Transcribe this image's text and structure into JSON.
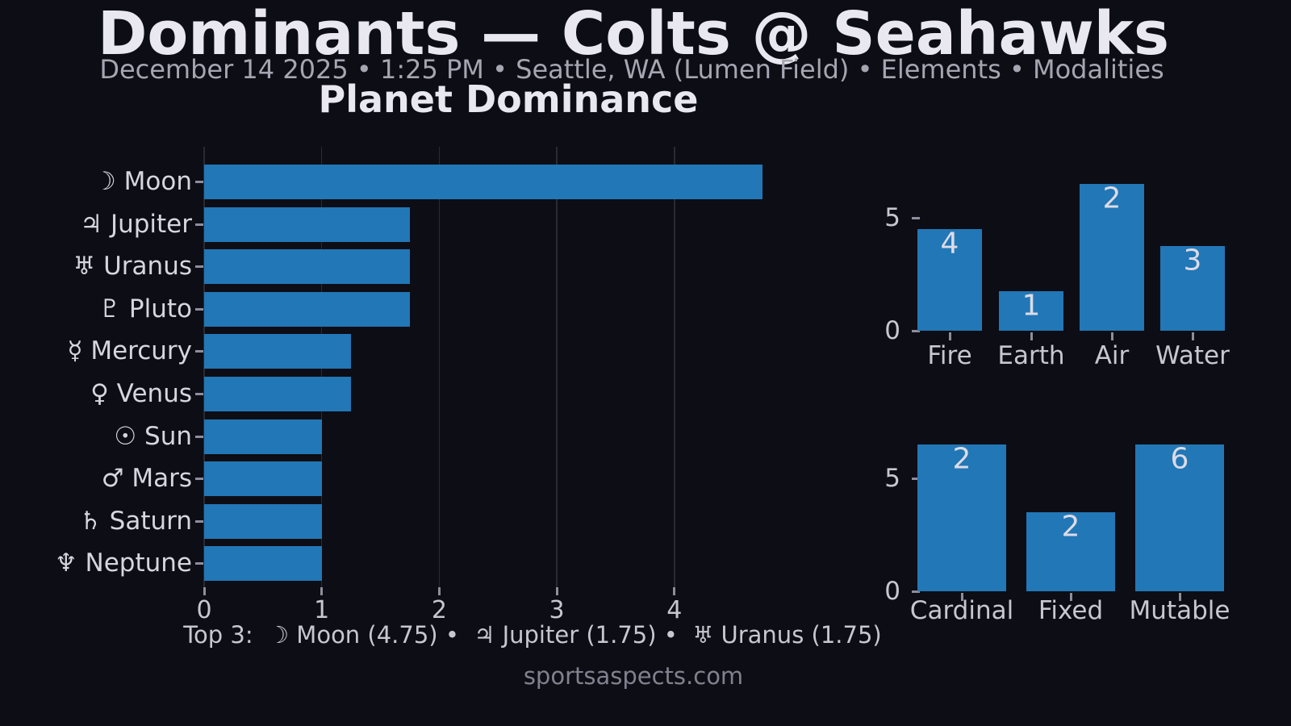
{
  "header": {
    "title": "Dominants — Colts @ Seahawks",
    "subtitle": "December 14 2025 • 1:25 PM • Seattle, WA (Lumen Field) • Elements • Modalities"
  },
  "footer": {
    "top3": "Top 3:  ☽ Moon (4.75) •  ♃ Jupiter (1.75) •  ♅ Uranus (1.75)",
    "site": "sportsaspects.com"
  },
  "colors": {
    "background": "#0d0d15",
    "bar": "#2277b6",
    "title_text": "#e9e8f1",
    "subtitle_text": "#a7a5b2",
    "tick_text": "#c7c6d1",
    "planet_label_text": "#d6d5e0",
    "bar_value_text": "#dcdbe6",
    "watermark_text": "#82808e",
    "tick_mark": "#8f8d9b",
    "gridline": "rgba(205,205,218,0.15)"
  },
  "chart_data": [
    {
      "type": "bar",
      "name": "Planet Dominance",
      "title": "Planet Dominance",
      "orientation": "horizontal",
      "categories": [
        "☽ Moon",
        "♃ Jupiter",
        "♅ Uranus",
        "♇ Pluto",
        "☿ Mercury",
        "♀ Venus",
        "☉ Sun",
        "♂ Mars",
        "♄ Saturn",
        "♆ Neptune"
      ],
      "values": [
        4.75,
        1.75,
        1.75,
        1.75,
        1.25,
        1.25,
        1.0,
        1.0,
        1.0,
        1.0
      ],
      "xticks": [
        0,
        1,
        2,
        3,
        4
      ],
      "xlim": [
        0,
        4.87
      ],
      "grid": true,
      "legend": "none"
    },
    {
      "type": "bar",
      "name": "Elements",
      "orientation": "vertical",
      "categories": [
        "Fire",
        "Earth",
        "Air",
        "Water"
      ],
      "values": [
        4.5,
        1.75,
        6.5,
        3.75
      ],
      "counts": [
        4,
        1,
        2,
        3
      ],
      "bar_labels": [
        "4",
        "1",
        "2",
        "3"
      ],
      "yticks": [
        0,
        5
      ],
      "ylim": [
        0,
        6.9
      ],
      "grid": false,
      "legend": "none"
    },
    {
      "type": "bar",
      "name": "Modalities",
      "orientation": "vertical",
      "categories": [
        "Cardinal",
        "Fixed",
        "Mutable"
      ],
      "values": [
        6.5,
        3.5,
        6.5
      ],
      "counts": [
        2,
        2,
        6
      ],
      "bar_labels": [
        "2",
        "2",
        "6"
      ],
      "yticks": [
        0,
        5
      ],
      "ylim": [
        0,
        6.9
      ],
      "grid": false,
      "legend": "none"
    }
  ]
}
